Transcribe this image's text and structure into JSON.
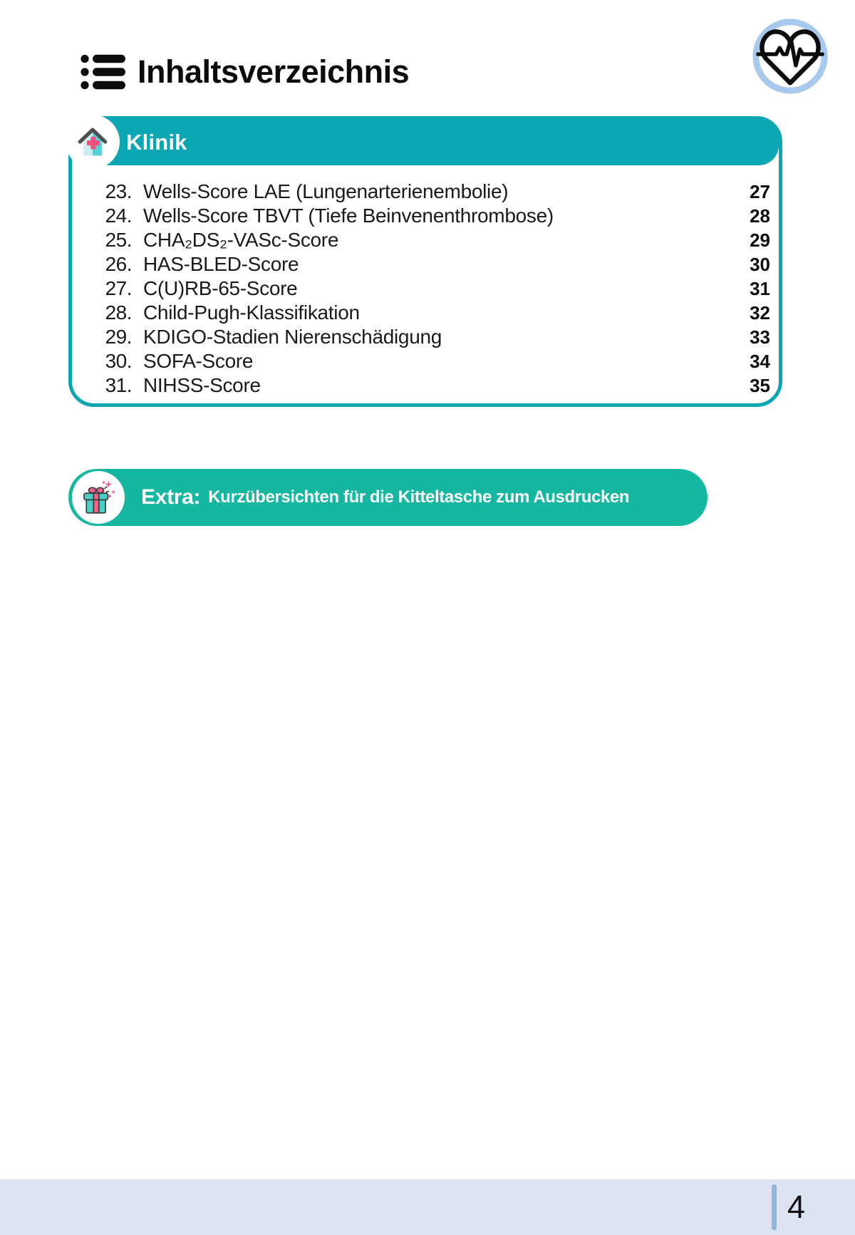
{
  "header": {
    "title": "Inhaltsverzeichnis",
    "list_icon": "list-icon",
    "badge_icon": "heartbeat-icon"
  },
  "klinik": {
    "title": "Klinik",
    "icon": "clinic-house-icon"
  },
  "toc": {
    "items": [
      {
        "num": "23.",
        "label": "Wells-Score LAE (Lungenarterienembolie)",
        "page": "27"
      },
      {
        "num": "24.",
        "label": "Wells-Score TBVT (Tiefe Beinvenenthrombose)",
        "page": "28"
      },
      {
        "num": "25.",
        "label": "CHA₂DS₂-VASc-Score",
        "page": "29"
      },
      {
        "num": "26.",
        "label": "HAS-BLED-Score",
        "page": "30"
      },
      {
        "num": "27.",
        "label": "C(U)RB-65-Score",
        "page": "31"
      },
      {
        "num": "28.",
        "label": "Child-Pugh-Klassifikation",
        "page": "32"
      },
      {
        "num": "29.",
        "label": "KDIGO-Stadien Nierenschädigung",
        "page": "33"
      },
      {
        "num": "30.",
        "label": "SOFA-Score",
        "page": "34"
      },
      {
        "num": "31.",
        "label": "NIHSS-Score",
        "page": "35"
      }
    ]
  },
  "extra": {
    "prefix": "Extra:",
    "text": "Kurzübersichten für die Kitteltasche zum Ausdrucken",
    "icon": "gift-icon"
  },
  "footer": {
    "page_number": "4"
  },
  "colors": {
    "klinik_teal": "#0aa6b3",
    "extra_teal": "#15b7a1",
    "footer_band": "#dce4f2",
    "footer_line": "#8fb6da",
    "heart_ring": "#a8c9ee",
    "cross_pink": "#f2537d",
    "house_teal": "#57d1d5",
    "text_black": "#121212"
  }
}
